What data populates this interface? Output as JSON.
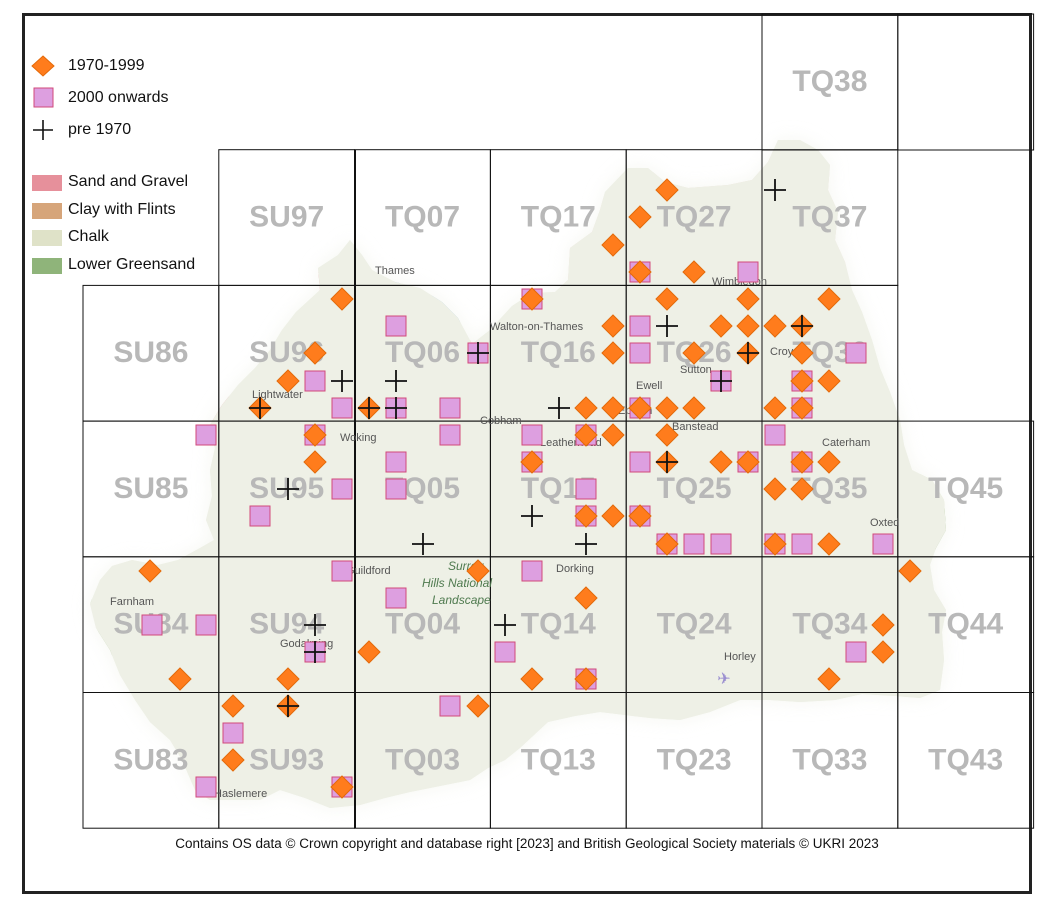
{
  "legend": {
    "records": [
      {
        "label": "1970-1999",
        "symbol": "diamond",
        "color": "#ff7c1c"
      },
      {
        "label": "2000 onwards",
        "symbol": "square",
        "color": "#dd9fe0"
      },
      {
        "label": "pre 1970",
        "symbol": "cross",
        "color": "#111111"
      }
    ],
    "geology": [
      {
        "label": "Sand and Gravel",
        "color": "#e6909b"
      },
      {
        "label": "Clay with Flints",
        "color": "#d6a57a"
      },
      {
        "label": "Chalk",
        "color": "#dfe2c8"
      },
      {
        "label": "Lower Greensand",
        "color": "#8fb47a"
      }
    ]
  },
  "grid_squares": [
    [
      "",
      "",
      "",
      "",
      "",
      "TQ38",
      ""
    ],
    [
      "",
      "SU97",
      "TQ07",
      "TQ17",
      "TQ27",
      "TQ37",
      ""
    ],
    [
      "SU86",
      "SU96",
      "TQ06",
      "TQ16",
      "TQ26",
      "TQ36",
      ""
    ],
    [
      "SU85",
      "SU95",
      "TQ05",
      "TQ15",
      "TQ25",
      "TQ35",
      "TQ45"
    ],
    [
      "SU84",
      "SU94",
      "TQ04",
      "TQ14",
      "TQ24",
      "TQ34",
      "TQ44"
    ],
    [
      "SU83",
      "SU93",
      "TQ03",
      "TQ13",
      "TQ23",
      "TQ33",
      "TQ43"
    ]
  ],
  "place_labels": [
    "Thames",
    "Lightwater",
    "Woking",
    "Cobham",
    "Leatherhead",
    "Guildford",
    "Farnham",
    "Godalming",
    "Dorking",
    "Horley",
    "Oxted",
    "Wimbledon",
    "Croydon",
    "Ewell",
    "Banstead",
    "Sutton",
    "Caterham",
    "Walton-on-Thames",
    "Epsom",
    "Haslemere"
  ],
  "landscape_label": [
    "Surrey",
    "Hills National",
    "Landscape"
  ],
  "credit": "Contains OS data  © Crown copyright and database right [2023] and British Geological Society materials © UKRI 2023",
  "records": {
    "diamonds": [
      [
        667,
        190
      ],
      [
        640,
        217
      ],
      [
        613,
        245
      ],
      [
        640,
        272
      ],
      [
        667,
        299
      ],
      [
        694,
        272
      ],
      [
        748,
        299
      ],
      [
        829,
        299
      ],
      [
        532,
        299
      ],
      [
        342,
        299
      ],
      [
        613,
        326
      ],
      [
        721,
        326
      ],
      [
        748,
        326
      ],
      [
        775,
        326
      ],
      [
        802,
        326
      ],
      [
        315,
        353
      ],
      [
        613,
        353
      ],
      [
        694,
        353
      ],
      [
        748,
        353
      ],
      [
        802,
        353
      ],
      [
        288,
        381
      ],
      [
        802,
        381
      ],
      [
        829,
        381
      ],
      [
        260,
        408
      ],
      [
        369,
        408
      ],
      [
        586,
        408
      ],
      [
        613,
        408
      ],
      [
        640,
        408
      ],
      [
        667,
        408
      ],
      [
        694,
        408
      ],
      [
        775,
        408
      ],
      [
        802,
        408
      ],
      [
        315,
        435
      ],
      [
        586,
        435
      ],
      [
        613,
        435
      ],
      [
        667,
        435
      ],
      [
        315,
        462
      ],
      [
        532,
        462
      ],
      [
        667,
        462
      ],
      [
        721,
        462
      ],
      [
        748,
        462
      ],
      [
        802,
        462
      ],
      [
        829,
        462
      ],
      [
        775,
        489
      ],
      [
        802,
        489
      ],
      [
        586,
        516
      ],
      [
        613,
        516
      ],
      [
        640,
        516
      ],
      [
        667,
        544
      ],
      [
        775,
        544
      ],
      [
        829,
        544
      ],
      [
        150,
        571
      ],
      [
        478,
        571
      ],
      [
        910,
        571
      ],
      [
        586,
        598
      ],
      [
        369,
        652
      ],
      [
        883,
        625
      ],
      [
        883,
        652
      ],
      [
        180,
        679
      ],
      [
        288,
        679
      ],
      [
        532,
        679
      ],
      [
        586,
        679
      ],
      [
        829,
        679
      ],
      [
        233,
        706
      ],
      [
        288,
        706
      ],
      [
        478,
        706
      ],
      [
        233,
        760
      ],
      [
        342,
        787
      ]
    ],
    "squares": [
      [
        640,
        272
      ],
      [
        748,
        272
      ],
      [
        532,
        299
      ],
      [
        396,
        326
      ],
      [
        640,
        326
      ],
      [
        478,
        353
      ],
      [
        640,
        353
      ],
      [
        856,
        353
      ],
      [
        315,
        381
      ],
      [
        721,
        381
      ],
      [
        802,
        381
      ],
      [
        342,
        408
      ],
      [
        396,
        408
      ],
      [
        450,
        408
      ],
      [
        640,
        408
      ],
      [
        802,
        408
      ],
      [
        206,
        435
      ],
      [
        315,
        435
      ],
      [
        450,
        435
      ],
      [
        532,
        435
      ],
      [
        586,
        435
      ],
      [
        775,
        435
      ],
      [
        396,
        462
      ],
      [
        532,
        462
      ],
      [
        640,
        462
      ],
      [
        748,
        462
      ],
      [
        802,
        462
      ],
      [
        342,
        489
      ],
      [
        396,
        489
      ],
      [
        586,
        489
      ],
      [
        260,
        516
      ],
      [
        586,
        516
      ],
      [
        640,
        516
      ],
      [
        667,
        544
      ],
      [
        694,
        544
      ],
      [
        721,
        544
      ],
      [
        775,
        544
      ],
      [
        802,
        544
      ],
      [
        883,
        544
      ],
      [
        342,
        571
      ],
      [
        532,
        571
      ],
      [
        396,
        598
      ],
      [
        152,
        625
      ],
      [
        206,
        625
      ],
      [
        315,
        652
      ],
      [
        505,
        652
      ],
      [
        856,
        652
      ],
      [
        586,
        679
      ],
      [
        450,
        706
      ],
      [
        233,
        733
      ],
      [
        206,
        787
      ],
      [
        342,
        787
      ]
    ],
    "crosses": [
      [
        775,
        190
      ],
      [
        667,
        326
      ],
      [
        802,
        326
      ],
      [
        478,
        353
      ],
      [
        748,
        353
      ],
      [
        342,
        381
      ],
      [
        396,
        381
      ],
      [
        721,
        381
      ],
      [
        260,
        408
      ],
      [
        369,
        408
      ],
      [
        396,
        408
      ],
      [
        559,
        408
      ],
      [
        667,
        462
      ],
      [
        288,
        489
      ],
      [
        532,
        516
      ],
      [
        586,
        544
      ],
      [
        423,
        544
      ],
      [
        505,
        625
      ],
      [
        315,
        625
      ],
      [
        315,
        652
      ],
      [
        288,
        706
      ]
    ]
  }
}
